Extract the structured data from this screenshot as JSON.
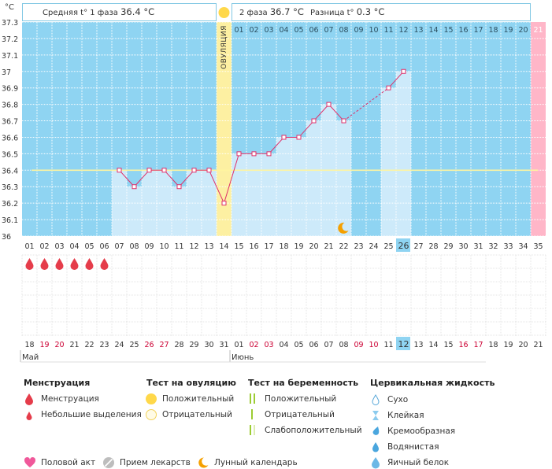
{
  "header": {
    "unit": "°C",
    "phase1_label": "Средняя t° 1 фаза",
    "phase1_value": "36.4 °C",
    "phase2_label": "2 фаза",
    "phase2_value": "36.7 °C",
    "diff_label": "Разница t°",
    "diff_value": "0.3 °C"
  },
  "chart_data": {
    "type": "line",
    "y_ticks": [
      "37.3",
      "37.2",
      "37.1",
      "37",
      "36.9",
      "36.8",
      "36.7",
      "36.6",
      "36.5",
      "36.4",
      "36.3",
      "36.2",
      "36.1",
      "36"
    ],
    "ylim": [
      36.0,
      37.3
    ],
    "cycle_days": [
      "01",
      "02",
      "03",
      "04",
      "05",
      "06",
      "07",
      "08",
      "09",
      "10",
      "11",
      "12",
      "13",
      "14",
      "15",
      "16",
      "17",
      "18",
      "19",
      "20",
      "21",
      "22",
      "23",
      "24",
      "25",
      "26",
      "27",
      "28",
      "29",
      "30",
      "31",
      "32",
      "33",
      "34",
      "35"
    ],
    "calendar_dates": [
      "18",
      "19",
      "20",
      "21",
      "22",
      "23",
      "24",
      "25",
      "26",
      "27",
      "28",
      "29",
      "30",
      "31",
      "01",
      "02",
      "03",
      "04",
      "05",
      "06",
      "07",
      "08",
      "09",
      "10",
      "11",
      "12",
      "13",
      "14",
      "15",
      "16",
      "17",
      "18",
      "19",
      "20",
      "21"
    ],
    "weekend_dates_red": [
      2,
      3,
      9,
      10,
      16,
      17,
      23,
      24,
      30,
      31
    ],
    "months": [
      {
        "label": "Май",
        "day": 1
      },
      {
        "label": "Июнь",
        "day": 15
      }
    ],
    "phase2_days": [
      "01",
      "02",
      "03",
      "04",
      "05",
      "06",
      "07",
      "08",
      "09",
      "10",
      "11",
      "12",
      "13",
      "14",
      "15",
      "16",
      "17",
      "18",
      "19",
      "20",
      "21"
    ],
    "temperatures": [
      null,
      null,
      null,
      null,
      null,
      null,
      36.4,
      36.3,
      36.4,
      36.4,
      36.3,
      36.4,
      36.4,
      36.2,
      36.5,
      36.5,
      36.5,
      36.6,
      36.6,
      36.7,
      36.8,
      36.7,
      null,
      null,
      36.9,
      37.0,
      null,
      null,
      null,
      null,
      null,
      null,
      null,
      null,
      null
    ],
    "cover_line": 36.4,
    "ovulation_day": 14,
    "ovulation_label": "ОВУЛЯЦИЯ",
    "current_day": 26,
    "current_date": "12",
    "next_cycle_day": 35,
    "menstruation_days": [
      1,
      2,
      3,
      4,
      5,
      6
    ],
    "lunar_day": 22
  },
  "legend": {
    "menstruation": {
      "title": "Менструация",
      "items": [
        "Менструация",
        "Небольшие выделения"
      ]
    },
    "ovulation_test": {
      "title": "Тест на овуляцию",
      "items": [
        "Положительный",
        "Отрицательный"
      ]
    },
    "pregnancy_test": {
      "title": "Тест на беременность",
      "items": [
        "Положительный",
        "Отрицательный",
        "Слабоположительный"
      ]
    },
    "cervical": {
      "title": "Цервикальная жидкость",
      "items": [
        "Сухо",
        "Клейкая",
        "Кремообразная",
        "Водянистая",
        "Яичный белок"
      ]
    },
    "other": [
      "Половой акт",
      "Прием лекарств",
      "Лунный календарь"
    ]
  },
  "colors": {
    "background": "#8fd4f2",
    "bar": "#cdeafa",
    "line": "#e0306a",
    "ovulation": "#fdf0a2",
    "next_cycle": "#ffb6c8",
    "weekend": "#cc0033",
    "header_border": "#82c8e4",
    "sun": "#ffd84a",
    "moon": "#f5a000"
  }
}
